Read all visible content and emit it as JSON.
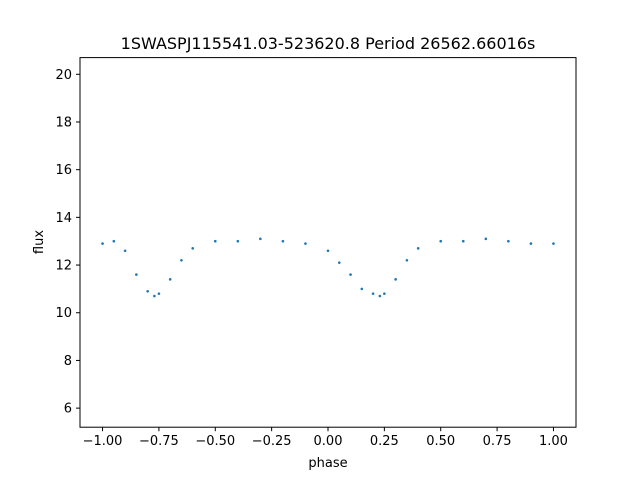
{
  "chart_data": {
    "type": "scatter",
    "title": "1SWASPJ115541.03-523620.8 Period 26562.66016s",
    "xlabel": "phase",
    "ylabel": "flux",
    "xlim": [
      -1.1,
      1.1
    ],
    "ylim": [
      5.2,
      20.7
    ],
    "xticks": [
      -1.0,
      -0.75,
      -0.5,
      -0.25,
      0.0,
      0.25,
      0.5,
      0.75,
      1.0
    ],
    "xtick_labels": [
      "−1.00",
      "−0.75",
      "−0.50",
      "−0.25",
      "0.00",
      "0.25",
      "0.50",
      "0.75",
      "1.00"
    ],
    "yticks": [
      6,
      8,
      10,
      12,
      14,
      16,
      18,
      20
    ],
    "ytick_labels": [
      "6",
      "8",
      "10",
      "12",
      "14",
      "16",
      "18",
      "20"
    ],
    "grid": false,
    "series": [
      {
        "color": "#1f77b4",
        "points": [
          [
            -1.0,
            12.9
          ],
          [
            -0.95,
            13.0
          ],
          [
            -0.9,
            12.6
          ],
          [
            -0.85,
            11.6
          ],
          [
            -0.8,
            10.9
          ],
          [
            -0.77,
            10.7
          ],
          [
            -0.75,
            10.8
          ],
          [
            -0.7,
            11.4
          ],
          [
            -0.65,
            12.2
          ],
          [
            -0.6,
            12.7
          ],
          [
            -0.5,
            13.0
          ],
          [
            -0.4,
            13.0
          ],
          [
            -0.3,
            13.1
          ],
          [
            -0.2,
            13.0
          ],
          [
            -0.1,
            12.9
          ],
          [
            0.0,
            12.6
          ],
          [
            0.05,
            12.1
          ],
          [
            0.1,
            11.6
          ],
          [
            0.15,
            11.0
          ],
          [
            0.2,
            10.8
          ],
          [
            0.23,
            10.7
          ],
          [
            0.25,
            10.8
          ],
          [
            0.3,
            11.4
          ],
          [
            0.35,
            12.2
          ],
          [
            0.4,
            12.7
          ],
          [
            0.5,
            13.0
          ],
          [
            0.6,
            13.0
          ],
          [
            0.7,
            13.1
          ],
          [
            0.8,
            13.0
          ],
          [
            0.9,
            12.9
          ],
          [
            1.0,
            12.9
          ]
        ]
      }
    ]
  }
}
